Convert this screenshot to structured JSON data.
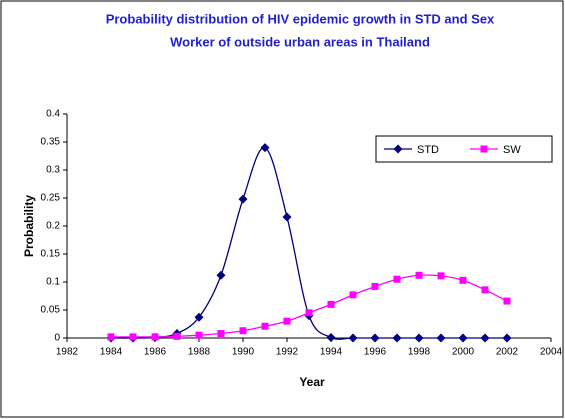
{
  "chart_data": {
    "type": "line",
    "title": [
      "Probability distribution of HIV epidemic growth in STD and Sex",
      "Worker of outside urban areas in Thailand"
    ],
    "x_label": "Year",
    "y_label": "Probability",
    "x": [
      1984,
      1985,
      1986,
      1987,
      1988,
      1989,
      1990,
      1991,
      1992,
      1993,
      1994,
      1995,
      1996,
      1997,
      1998,
      1999,
      2000,
      2001,
      2002
    ],
    "series": [
      {
        "name": "STD",
        "color": "#000080",
        "marker": "diamond",
        "values": [
          0,
          0,
          0.001,
          0.008,
          0.037,
          0.112,
          0.248,
          0.34,
          0.216,
          0.04,
          0.001,
          0,
          0,
          0,
          0,
          0,
          0,
          0,
          0
        ]
      },
      {
        "name": "SW",
        "color": "#ff00ff",
        "marker": "square",
        "values": [
          0.002,
          0.002,
          0.002,
          0.003,
          0.005,
          0.008,
          0.013,
          0.021,
          0.03,
          0.045,
          0.06,
          0.077,
          0.092,
          0.105,
          0.112,
          0.111,
          0.103,
          0.086,
          0.066
        ]
      }
    ],
    "xlim": [
      1982,
      2004
    ],
    "xticks": [
      1982,
      1984,
      1986,
      1988,
      1990,
      1992,
      1994,
      1996,
      1998,
      2000,
      2002,
      2004
    ],
    "ylim": [
      0,
      0.4
    ],
    "yticks": [
      0,
      0.05,
      0.1,
      0.15,
      0.2,
      0.25,
      0.3,
      0.35,
      0.4
    ],
    "legend": "top-right",
    "smooth": true
  }
}
